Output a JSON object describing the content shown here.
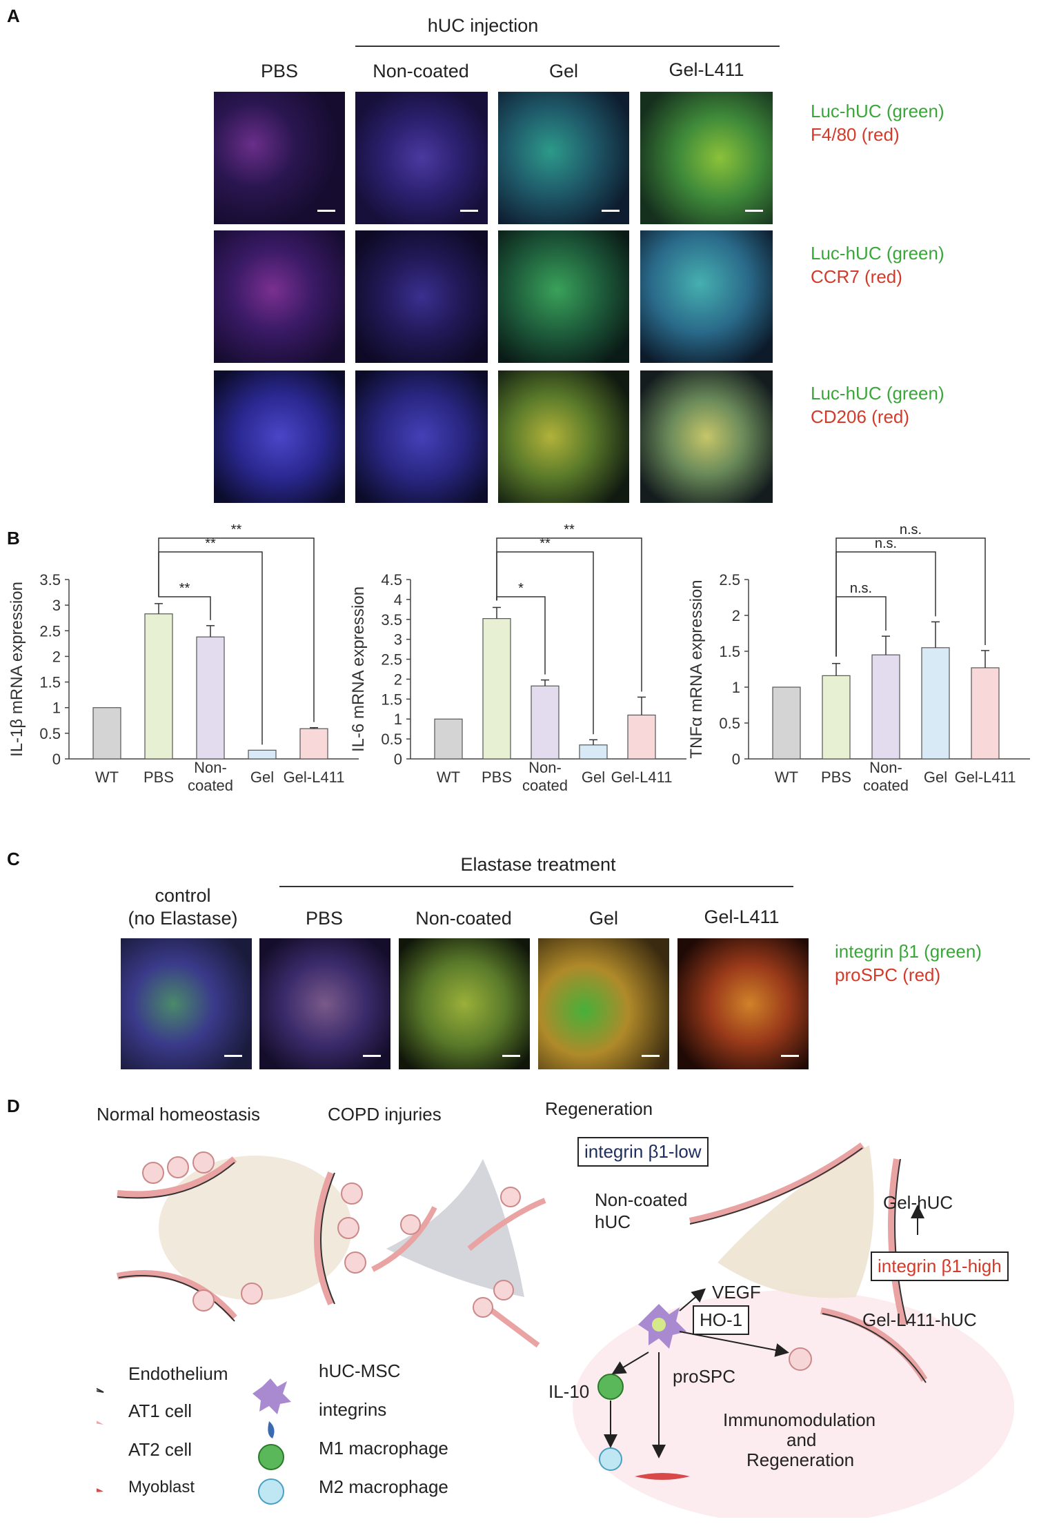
{
  "panelA": {
    "letter": "A",
    "group_label": "hUC injection",
    "columns": [
      "PBS",
      "Non-coated",
      "Gel",
      "Gel-L411"
    ],
    "rows": [
      {
        "green": "Luc-hUC  (green)",
        "red": "F4/80  (red)"
      },
      {
        "green": "Luc-hUC  (green)",
        "red": "CCR7  (red)"
      },
      {
        "green": "Luc-hUC  (green)",
        "red": "CD206  (red)"
      }
    ]
  },
  "panelB": {
    "letter": "B",
    "chart_data": [
      {
        "type": "bar",
        "ylabel": "IL-1β mRNA expression",
        "categories": [
          "WT",
          "PBS",
          "Non-\ncoated",
          "Gel",
          "Gel-L411"
        ],
        "values": [
          1.0,
          2.83,
          2.38,
          0.17,
          0.59
        ],
        "errors": [
          0,
          0.2,
          0.22,
          0,
          0.02
        ],
        "ylim": [
          0,
          3.5
        ],
        "yticks": [
          0,
          0.5,
          1,
          1.5,
          2,
          2.5,
          3,
          3.5
        ],
        "colors": [
          "#d4d4d4",
          "#e7f0d2",
          "#e2dcee",
          "#d8eaf6",
          "#f8d8d8"
        ],
        "sig": [
          {
            "from": 1,
            "to": 2,
            "label": "**"
          },
          {
            "from": 1,
            "to": 3,
            "label": "**"
          },
          {
            "from": 1,
            "to": 4,
            "label": "**"
          }
        ]
      },
      {
        "type": "bar",
        "ylabel": "IL-6 mRNA expression",
        "categories": [
          "WT",
          "PBS",
          "Non-\ncoated",
          "Gel",
          "Gel-L411"
        ],
        "values": [
          1.0,
          3.52,
          1.83,
          0.35,
          1.1
        ],
        "errors": [
          0,
          0.28,
          0.15,
          0.13,
          0.45
        ],
        "ylim": [
          0,
          4.5
        ],
        "yticks": [
          0,
          0.5,
          1,
          1.5,
          2,
          2.5,
          3,
          3.5,
          4,
          4.5
        ],
        "colors": [
          "#d4d4d4",
          "#e7f0d2",
          "#e2dcee",
          "#d8eaf6",
          "#f8d8d8"
        ],
        "sig": [
          {
            "from": 1,
            "to": 2,
            "label": "*"
          },
          {
            "from": 1,
            "to": 3,
            "label": "**"
          },
          {
            "from": 1,
            "to": 4,
            "label": "**"
          }
        ]
      },
      {
        "type": "bar",
        "ylabel": "TNFα mRNA expression",
        "categories": [
          "WT",
          "PBS",
          "Non-\ncoated",
          "Gel",
          "Gel-L411"
        ],
        "values": [
          1.0,
          1.16,
          1.45,
          1.55,
          1.27
        ],
        "errors": [
          0,
          0.17,
          0.26,
          0.36,
          0.24
        ],
        "ylim": [
          0,
          2.5
        ],
        "yticks": [
          0,
          0.5,
          1,
          1.5,
          2,
          2.5
        ],
        "colors": [
          "#d4d4d4",
          "#e7f0d2",
          "#e2dcee",
          "#d8eaf6",
          "#f8d8d8"
        ],
        "sig": [
          {
            "from": 1,
            "to": 2,
            "label": "n.s."
          },
          {
            "from": 1,
            "to": 3,
            "label": "n.s."
          },
          {
            "from": 1,
            "to": 4,
            "label": "n.s."
          }
        ]
      }
    ]
  },
  "panelC": {
    "letter": "C",
    "group_label": "Elastase treatment",
    "control_label_1": "control",
    "control_label_2": "(no Elastase)",
    "columns": [
      "PBS",
      "Non-coated",
      "Gel",
      "Gel-L411"
    ],
    "legend_green": "integrin β1 (green)",
    "legend_red": "proSPC  (red)"
  },
  "panelD": {
    "letter": "D",
    "titles": [
      "Normal  homeostasis",
      "COPD  injuries",
      "Regeneration"
    ],
    "box_low": "integrin β1-low",
    "box_high": "integrin β1-high",
    "noncoated_1": "Non-coated",
    "noncoated_2": "hUC",
    "gel_huc": "Gel-hUC",
    "gel_l411_huc": "Gel-L411-hUC",
    "vegf": "VEGF",
    "ho1": "HO-1",
    "il10": "IL-10",
    "prospc": "proSPC",
    "immuno_1": "Immunomodulation",
    "immuno_2": "and",
    "immuno_3": "Regeneration",
    "legend": [
      "Endothelium",
      "AT1 cell",
      "AT2 cell",
      "Myoblast",
      "hUC-MSC",
      "integrins",
      "M1 macrophage",
      "M2 macrophage"
    ]
  }
}
